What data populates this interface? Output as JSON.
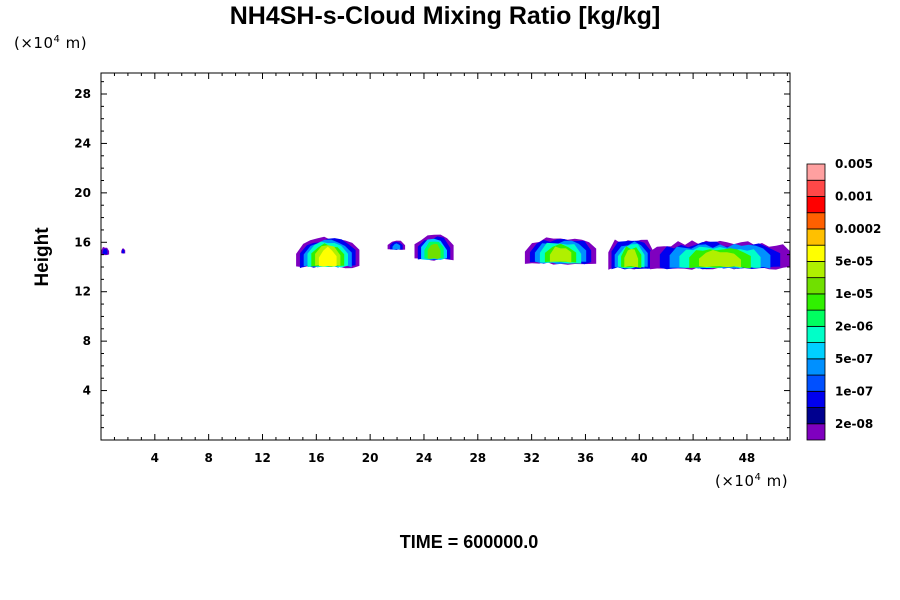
{
  "chart_data": {
    "type": "contour",
    "title": "NH4SH-s-Cloud Mixing Ratio [kg/kg]",
    "xlabel": "",
    "ylabel": "Height",
    "x_unit": {
      "prefix": "(×10",
      "exp": "4",
      "suffix": " m)"
    },
    "y_unit": {
      "prefix": "(×10",
      "exp": "4",
      "suffix": " m)"
    },
    "xlim": [
      0,
      51.2
    ],
    "ylim": [
      0,
      29.7
    ],
    "x_ticks": [
      4,
      8,
      12,
      16,
      20,
      24,
      28,
      32,
      36,
      40,
      44,
      48
    ],
    "y_ticks": [
      4,
      8,
      12,
      16,
      20,
      24,
      28
    ],
    "footer": "TIME = 600000.0",
    "colorbar": {
      "colors": [
        "#7f00bf",
        "#00008f",
        "#0000ef",
        "#0050ff",
        "#0090ff",
        "#00d0ff",
        "#00ffc8",
        "#00ff60",
        "#30f000",
        "#70e000",
        "#b0f000",
        "#ffff00",
        "#ffc000",
        "#ff6000",
        "#ff0000",
        "#ff4848",
        "#ffa0a0"
      ],
      "labels": [
        "2e-08",
        "1e-07",
        "5e-07",
        "2e-06",
        "1e-05",
        "5e-05",
        "0.0002",
        "0.001",
        "0.005"
      ]
    },
    "cloud_features": [
      {
        "x": [
          0.0,
          0.6
        ],
        "y": [
          15.0,
          15.6
        ],
        "levels": [
          "#7f00bf",
          "#0000ef"
        ]
      },
      {
        "x": [
          1.5,
          1.8
        ],
        "y": [
          15.1,
          15.5
        ],
        "levels": [
          "#7f00bf",
          "#0000ef"
        ]
      },
      {
        "x": [
          14.5,
          19.2
        ],
        "y": [
          14.0,
          16.3
        ],
        "levels": [
          "#7f00bf",
          "#0000ef",
          "#0090ff",
          "#00ffc8",
          "#30f000",
          "#b0f000",
          "#ffff00"
        ]
      },
      {
        "x": [
          21.3,
          22.6
        ],
        "y": [
          15.4,
          16.1
        ],
        "levels": [
          "#7f00bf",
          "#0000ef",
          "#0090ff"
        ]
      },
      {
        "x": [
          23.3,
          26.2
        ],
        "y": [
          14.6,
          16.5
        ],
        "levels": [
          "#7f00bf",
          "#0000ef",
          "#00d0ff",
          "#00ff60",
          "#70e000"
        ]
      },
      {
        "x": [
          31.5,
          36.8
        ],
        "y": [
          14.3,
          16.3
        ],
        "levels": [
          "#7f00bf",
          "#0000ef",
          "#0090ff",
          "#00ffc8",
          "#30f000",
          "#b0f000"
        ]
      },
      {
        "x": [
          37.7,
          41.1
        ],
        "y": [
          13.9,
          16.2
        ],
        "levels": [
          "#7f00bf",
          "#0000ef",
          "#0090ff",
          "#00ffc8",
          "#30f000",
          "#b0f000"
        ]
      },
      {
        "x": [
          40.8,
          51.2
        ],
        "y": [
          13.9,
          16.0
        ],
        "levels": [
          "#7f00bf",
          "#0000ef",
          "#0090ff",
          "#00ffc8",
          "#30f000",
          "#b0f000"
        ]
      }
    ]
  }
}
